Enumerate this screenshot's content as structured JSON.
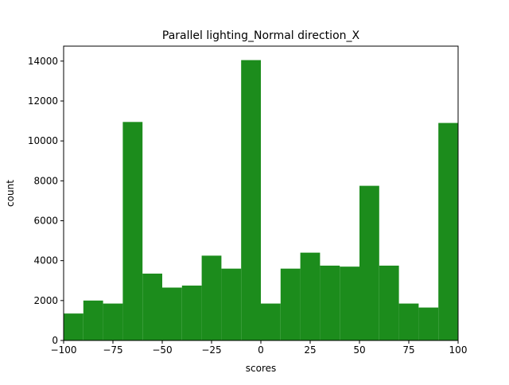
{
  "chart_data": {
    "type": "bar",
    "title": "Parallel lighting_Normal direction_X",
    "xlabel": "scores",
    "ylabel": "count",
    "bin_edges": [
      -100,
      -90,
      -80,
      -70,
      -60,
      -50,
      -40,
      -30,
      -20,
      -10,
      0,
      10,
      20,
      30,
      40,
      50,
      60,
      70,
      80,
      90,
      100
    ],
    "values": [
      1350,
      2000,
      1850,
      10950,
      3350,
      2650,
      2750,
      4250,
      3600,
      14050,
      1850,
      3600,
      4400,
      3750,
      3700,
      7750,
      3750,
      1850,
      1650,
      10900
    ],
    "xlim": [
      -100,
      100
    ],
    "ylim": [
      0,
      14750
    ],
    "xticks": [
      -100,
      -75,
      -50,
      -25,
      0,
      25,
      50,
      75,
      100
    ],
    "xtick_labels": [
      "−100",
      "−75",
      "−50",
      "−25",
      "0",
      "25",
      "50",
      "75",
      "100"
    ],
    "yticks": [
      0,
      2000,
      4000,
      6000,
      8000,
      10000,
      12000,
      14000
    ],
    "ytick_labels": [
      "0",
      "2000",
      "4000",
      "6000",
      "8000",
      "10000",
      "12000",
      "14000"
    ],
    "bar_color": "#1c8c1c",
    "grid": false
  }
}
